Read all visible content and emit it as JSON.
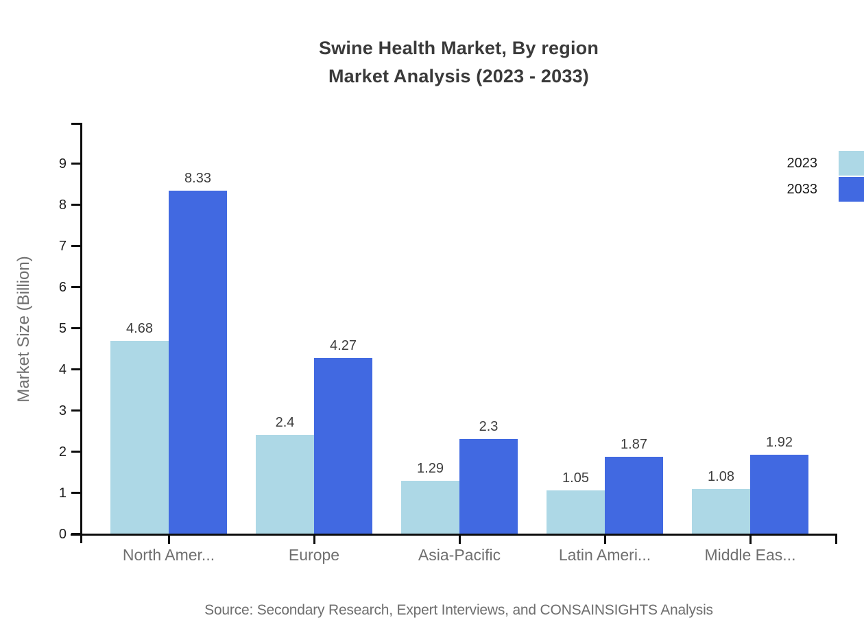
{
  "header": {
    "title_line1": "Swine Health Market, By region",
    "title_line2": "Market Analysis (2023 - 2033)"
  },
  "chart_data": {
    "type": "bar",
    "title": "Swine Health Market, By region Market Analysis (2023 - 2033)",
    "categories": [
      "North Amer...",
      "Europe",
      "Asia-Pacific",
      "Latin Ameri...",
      "Middle Eas..."
    ],
    "series": [
      {
        "name": "2023",
        "color": "#ADD8E6",
        "values": [
          4.68,
          2.4,
          1.29,
          1.05,
          1.08
        ]
      },
      {
        "name": "2033",
        "color": "#4169E1",
        "values": [
          8.33,
          4.27,
          2.3,
          1.87,
          1.92
        ]
      }
    ],
    "xlabel": "",
    "ylabel": "Market Size (Billion)",
    "ylim": [
      0,
      10
    ],
    "yticks": [
      0,
      1,
      2,
      3,
      4,
      5,
      6,
      7,
      8,
      9
    ],
    "grid": false,
    "legend_position": "top-right",
    "value_labels_shown": true,
    "axis_color": "#0d0d0d",
    "label_color": "#3d3d3d",
    "category_label_color": "#6f6f6f"
  },
  "footer": {
    "source": "Source: Secondary Research, Expert Interviews, and CONSAINSIGHTS Analysis"
  }
}
